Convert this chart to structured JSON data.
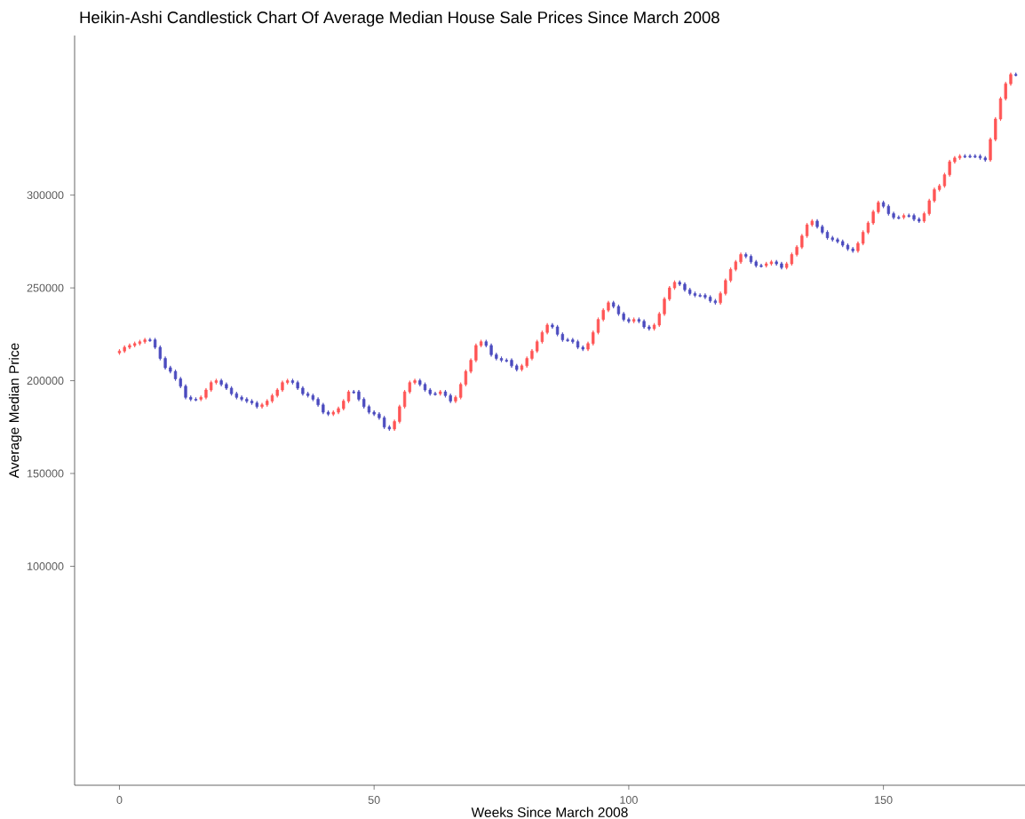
{
  "chart_data": {
    "type": "candlestick",
    "title": "Heikin-Ashi Candlestick Chart Of Average Median House Sale Prices Since March 2008",
    "xlabel": "Weeks Since March 2008",
    "ylabel": "Average Median Price",
    "xlim": [
      -8.8,
      177.8
    ],
    "xticks": [
      0,
      50,
      100,
      150
    ],
    "ylim": [
      -18000,
      386000
    ],
    "yticks": [
      100000,
      150000,
      200000,
      250000,
      300000
    ],
    "x": [
      0,
      1,
      2,
      3,
      4,
      5,
      6,
      7,
      8,
      9,
      10,
      11,
      12,
      13,
      14,
      15,
      16,
      17,
      18,
      19,
      20,
      21,
      22,
      23,
      24,
      25,
      26,
      27,
      28,
      29,
      30,
      31,
      32,
      33,
      34,
      35,
      36,
      37,
      38,
      39,
      40,
      41,
      42,
      43,
      44,
      45,
      46,
      47,
      48,
      49,
      50,
      51,
      52,
      53,
      54,
      55,
      56,
      57,
      58,
      59,
      60,
      61,
      62,
      63,
      64,
      65,
      66,
      67,
      68,
      69,
      70,
      71,
      72,
      73,
      74,
      75,
      76,
      77,
      78,
      79,
      80,
      81,
      82,
      83,
      84,
      85,
      86,
      87,
      88,
      89,
      90,
      91,
      92,
      93,
      94,
      95,
      96,
      97,
      98,
      99,
      100,
      101,
      102,
      103,
      104,
      105,
      106,
      107,
      108,
      109,
      110,
      111,
      112,
      113,
      114,
      115,
      116,
      117,
      118,
      119,
      120,
      121,
      122,
      123,
      124,
      125,
      126,
      127,
      128,
      129,
      130,
      131,
      132,
      133,
      134,
      135,
      136,
      137,
      138,
      139,
      140,
      141,
      142,
      143,
      144,
      145,
      146,
      147,
      148,
      149,
      150,
      151,
      152,
      153,
      154,
      155,
      156,
      157,
      158,
      159,
      160,
      161,
      162,
      163,
      164,
      165,
      166,
      167,
      168,
      169,
      170,
      171,
      172,
      173,
      174,
      175,
      176
    ],
    "ohlc": [
      [
        215000,
        217000,
        214000,
        216000
      ],
      [
        216000,
        219000,
        215000,
        218000
      ],
      [
        218000,
        220000,
        217000,
        219000
      ],
      [
        219000,
        221000,
        218000,
        220000
      ],
      [
        220000,
        222000,
        219000,
        221000
      ],
      [
        221000,
        223000,
        220000,
        222000
      ],
      [
        222000,
        223000,
        221000,
        221500
      ],
      [
        222000,
        223000,
        217000,
        218000
      ],
      [
        218000,
        219000,
        211000,
        212000
      ],
      [
        212000,
        213000,
        206000,
        207000
      ],
      [
        207000,
        208000,
        204000,
        205000
      ],
      [
        205000,
        206000,
        200000,
        201000
      ],
      [
        201000,
        202000,
        196000,
        197000
      ],
      [
        197000,
        198000,
        190000,
        191000
      ],
      [
        191000,
        192000,
        189000,
        190000
      ],
      [
        190000,
        191000,
        189000,
        189500
      ],
      [
        190000,
        192000,
        189000,
        191000
      ],
      [
        191000,
        196000,
        190000,
        195000
      ],
      [
        195000,
        200000,
        194000,
        199000
      ],
      [
        199000,
        201000,
        198000,
        200000
      ],
      [
        200000,
        201000,
        197000,
        198000
      ],
      [
        198000,
        199000,
        195000,
        196000
      ],
      [
        196000,
        197000,
        192000,
        193000
      ],
      [
        193000,
        194000,
        190000,
        191000
      ],
      [
        191000,
        192000,
        189000,
        190000
      ],
      [
        190000,
        191000,
        188000,
        189000
      ],
      [
        189000,
        190000,
        187000,
        188000
      ],
      [
        188000,
        189000,
        185000,
        186000
      ],
      [
        186000,
        188000,
        185000,
        187000
      ],
      [
        187000,
        190000,
        186000,
        189000
      ],
      [
        189000,
        193000,
        188000,
        192000
      ],
      [
        192000,
        196000,
        191000,
        195000
      ],
      [
        195000,
        200000,
        194000,
        199000
      ],
      [
        199000,
        201000,
        198000,
        200000
      ],
      [
        200000,
        201000,
        198000,
        199000
      ],
      [
        199000,
        200000,
        195000,
        196000
      ],
      [
        196000,
        197000,
        192000,
        193000
      ],
      [
        193000,
        194000,
        191000,
        192000
      ],
      [
        192000,
        193000,
        189000,
        190000
      ],
      [
        190000,
        191000,
        186000,
        187000
      ],
      [
        187000,
        188000,
        182000,
        183000
      ],
      [
        183000,
        184000,
        181000,
        182000
      ],
      [
        182000,
        184000,
        181000,
        183000
      ],
      [
        183000,
        186000,
        182000,
        185000
      ],
      [
        185000,
        190000,
        184000,
        189000
      ],
      [
        189000,
        195000,
        188000,
        194000
      ],
      [
        194000,
        195000,
        193000,
        193500
      ],
      [
        194000,
        195000,
        189000,
        190000
      ],
      [
        190000,
        191000,
        185000,
        186000
      ],
      [
        186000,
        187000,
        182000,
        183000
      ],
      [
        183000,
        184000,
        181000,
        182000
      ],
      [
        182000,
        183000,
        179000,
        180000
      ],
      [
        180000,
        181000,
        174000,
        175000
      ],
      [
        175000,
        176000,
        173000,
        174000
      ],
      [
        174000,
        179000,
        173000,
        178000
      ],
      [
        178000,
        187000,
        177000,
        186000
      ],
      [
        186000,
        195000,
        185000,
        194000
      ],
      [
        194000,
        200000,
        193000,
        199000
      ],
      [
        199000,
        201000,
        198000,
        200000
      ],
      [
        200000,
        201000,
        197000,
        198000
      ],
      [
        198000,
        199000,
        194000,
        195000
      ],
      [
        195000,
        196000,
        192000,
        193000
      ],
      [
        193000,
        194000,
        192000,
        192500
      ],
      [
        193000,
        195000,
        192000,
        194000
      ],
      [
        194000,
        195000,
        191000,
        192000
      ],
      [
        192000,
        193000,
        188000,
        189000
      ],
      [
        189000,
        192000,
        188000,
        191000
      ],
      [
        191000,
        199000,
        190000,
        198000
      ],
      [
        198000,
        206000,
        197000,
        205000
      ],
      [
        205000,
        212000,
        204000,
        211000
      ],
      [
        211000,
        220000,
        210000,
        219000
      ],
      [
        219000,
        222000,
        218000,
        221000
      ],
      [
        221000,
        222000,
        218000,
        219000
      ],
      [
        219000,
        220000,
        213000,
        214000
      ],
      [
        214000,
        215000,
        211000,
        212000
      ],
      [
        212000,
        213000,
        210000,
        211000
      ],
      [
        211000,
        212000,
        210000,
        210500
      ],
      [
        211000,
        212000,
        207000,
        208000
      ],
      [
        208000,
        209000,
        205000,
        206000
      ],
      [
        206000,
        209000,
        205000,
        208000
      ],
      [
        208000,
        213000,
        207000,
        212000
      ],
      [
        212000,
        217000,
        211000,
        216000
      ],
      [
        216000,
        222000,
        215000,
        221000
      ],
      [
        221000,
        227000,
        220000,
        226000
      ],
      [
        226000,
        231000,
        225000,
        230000
      ],
      [
        230000,
        231000,
        228000,
        229000
      ],
      [
        229000,
        230000,
        224000,
        225000
      ],
      [
        225000,
        226000,
        221000,
        222000
      ],
      [
        222000,
        223000,
        221000,
        221500
      ],
      [
        222000,
        223000,
        220000,
        221000
      ],
      [
        221000,
        222000,
        217000,
        218000
      ],
      [
        218000,
        219000,
        216000,
        217000
      ],
      [
        217000,
        221000,
        216000,
        220000
      ],
      [
        220000,
        227000,
        219000,
        226000
      ],
      [
        226000,
        234000,
        225000,
        233000
      ],
      [
        233000,
        239000,
        232000,
        238000
      ],
      [
        238000,
        243000,
        237000,
        242000
      ],
      [
        242000,
        243000,
        239000,
        240000
      ],
      [
        240000,
        241000,
        235000,
        236000
      ],
      [
        236000,
        237000,
        232000,
        233000
      ],
      [
        233000,
        234000,
        231000,
        232000
      ],
      [
        232000,
        234000,
        231000,
        233000
      ],
      [
        233000,
        234000,
        231000,
        232000
      ],
      [
        232000,
        233000,
        228000,
        229000
      ],
      [
        229000,
        230000,
        227000,
        228000
      ],
      [
        228000,
        231000,
        227000,
        230000
      ],
      [
        230000,
        237000,
        229000,
        236000
      ],
      [
        236000,
        245000,
        235000,
        244000
      ],
      [
        244000,
        251000,
        243000,
        250000
      ],
      [
        250000,
        254000,
        249000,
        253000
      ],
      [
        253000,
        254000,
        251000,
        252000
      ],
      [
        252000,
        253000,
        248000,
        249000
      ],
      [
        249000,
        250000,
        246000,
        247000
      ],
      [
        247000,
        248000,
        245000,
        246000
      ],
      [
        246000,
        247000,
        245000,
        245500
      ],
      [
        246000,
        247000,
        244000,
        245000
      ],
      [
        245000,
        246000,
        242000,
        243000
      ],
      [
        243000,
        244000,
        241000,
        242000
      ],
      [
        242000,
        248000,
        241000,
        247000
      ],
      [
        247000,
        255000,
        246000,
        254000
      ],
      [
        254000,
        261000,
        253000,
        260000
      ],
      [
        260000,
        265000,
        259000,
        264000
      ],
      [
        264000,
        269000,
        263000,
        268000
      ],
      [
        268000,
        269000,
        266000,
        267000
      ],
      [
        267000,
        268000,
        263000,
        264000
      ],
      [
        264000,
        265000,
        261000,
        262000
      ],
      [
        262000,
        263000,
        261000,
        261500
      ],
      [
        262000,
        264000,
        261000,
        263000
      ],
      [
        263000,
        265000,
        262000,
        264000
      ],
      [
        264000,
        265000,
        262000,
        263000
      ],
      [
        263000,
        264000,
        260000,
        261000
      ],
      [
        261000,
        264000,
        260000,
        263000
      ],
      [
        263000,
        269000,
        262000,
        268000
      ],
      [
        268000,
        273000,
        267000,
        272000
      ],
      [
        272000,
        279000,
        271000,
        278000
      ],
      [
        278000,
        285000,
        277000,
        284000
      ],
      [
        284000,
        287000,
        283000,
        286000
      ],
      [
        286000,
        287000,
        282000,
        283000
      ],
      [
        283000,
        284000,
        279000,
        280000
      ],
      [
        280000,
        281000,
        276000,
        277000
      ],
      [
        277000,
        278000,
        275000,
        276000
      ],
      [
        276000,
        277000,
        274000,
        275000
      ],
      [
        275000,
        276000,
        272000,
        273000
      ],
      [
        273000,
        274000,
        270000,
        271000
      ],
      [
        271000,
        272000,
        269000,
        270000
      ],
      [
        270000,
        275000,
        269000,
        274000
      ],
      [
        274000,
        281000,
        273000,
        280000
      ],
      [
        280000,
        286000,
        279000,
        285000
      ],
      [
        285000,
        292000,
        284000,
        291000
      ],
      [
        291000,
        297000,
        290000,
        296000
      ],
      [
        296000,
        297000,
        293000,
        294000
      ],
      [
        294000,
        295000,
        289000,
        290000
      ],
      [
        290000,
        291000,
        287000,
        288000
      ],
      [
        288000,
        289000,
        287000,
        287500
      ],
      [
        288000,
        290000,
        287000,
        289000
      ],
      [
        289000,
        290000,
        288000,
        288500
      ],
      [
        289000,
        290000,
        286000,
        287000
      ],
      [
        287000,
        288000,
        285000,
        286000
      ],
      [
        286000,
        291000,
        285000,
        290000
      ],
      [
        290000,
        298000,
        289000,
        297000
      ],
      [
        297000,
        304000,
        296000,
        303000
      ],
      [
        303000,
        306000,
        302000,
        305000
      ],
      [
        305000,
        312000,
        304000,
        311000
      ],
      [
        311000,
        319000,
        310000,
        318000
      ],
      [
        318000,
        321000,
        317000,
        320000
      ],
      [
        320000,
        322000,
        319000,
        321000
      ],
      [
        321000,
        322000,
        320000,
        320500
      ],
      [
        321000,
        322000,
        320000,
        320500
      ],
      [
        321000,
        322000,
        320000,
        320500
      ],
      [
        321000,
        322000,
        319000,
        320000
      ],
      [
        320000,
        321000,
        318000,
        319000
      ],
      [
        319000,
        331000,
        318000,
        330000
      ],
      [
        330000,
        342000,
        329000,
        341000
      ],
      [
        341000,
        353000,
        340000,
        352000
      ],
      [
        352000,
        361000,
        351000,
        360000
      ],
      [
        360000,
        366000,
        359000,
        365000
      ],
      [
        365000,
        366000,
        364000,
        364500
      ]
    ],
    "colors": [
      "#ff5555",
      "#ff5555",
      "#ff5555",
      "#ff5555",
      "#ff5555",
      "#ff5555",
      "#4b4bbf",
      "#4b4bbf",
      "#4b4bbf",
      "#4b4bbf",
      "#4b4bbf",
      "#4b4bbf",
      "#4b4bbf",
      "#4b4bbf",
      "#4b4bbf",
      "#4b4bbf",
      "#ff5555",
      "#ff5555",
      "#ff5555",
      "#ff5555",
      "#4b4bbf",
      "#4b4bbf",
      "#4b4bbf",
      "#4b4bbf",
      "#4b4bbf",
      "#4b4bbf",
      "#4b4bbf",
      "#4b4bbf",
      "#ff5555",
      "#ff5555",
      "#ff5555",
      "#ff5555",
      "#ff5555",
      "#ff5555",
      "#4b4bbf",
      "#4b4bbf",
      "#4b4bbf",
      "#4b4bbf",
      "#4b4bbf",
      "#4b4bbf",
      "#4b4bbf",
      "#4b4bbf",
      "#ff5555",
      "#ff5555",
      "#ff5555",
      "#ff5555",
      "#4b4bbf",
      "#4b4bbf",
      "#4b4bbf",
      "#4b4bbf",
      "#4b4bbf",
      "#4b4bbf",
      "#4b4bbf",
      "#4b4bbf",
      "#ff5555",
      "#ff5555",
      "#ff5555",
      "#ff5555",
      "#ff5555",
      "#4b4bbf",
      "#4b4bbf",
      "#4b4bbf",
      "#4b4bbf",
      "#ff5555",
      "#4b4bbf",
      "#4b4bbf",
      "#ff5555",
      "#ff5555",
      "#ff5555",
      "#ff5555",
      "#ff5555",
      "#ff5555",
      "#4b4bbf",
      "#4b4bbf",
      "#4b4bbf",
      "#4b4bbf",
      "#4b4bbf",
      "#4b4bbf",
      "#4b4bbf",
      "#ff5555",
      "#ff5555",
      "#ff5555",
      "#ff5555",
      "#ff5555",
      "#ff5555",
      "#4b4bbf",
      "#4b4bbf",
      "#4b4bbf",
      "#4b4bbf",
      "#4b4bbf",
      "#4b4bbf",
      "#4b4bbf",
      "#ff5555",
      "#ff5555",
      "#ff5555",
      "#ff5555",
      "#ff5555",
      "#4b4bbf",
      "#4b4bbf",
      "#4b4bbf",
      "#4b4bbf",
      "#ff5555",
      "#4b4bbf",
      "#4b4bbf",
      "#4b4bbf",
      "#ff5555",
      "#ff5555",
      "#ff5555",
      "#ff5555",
      "#ff5555",
      "#4b4bbf",
      "#4b4bbf",
      "#4b4bbf",
      "#4b4bbf",
      "#4b4bbf",
      "#4b4bbf",
      "#4b4bbf",
      "#4b4bbf",
      "#ff5555",
      "#ff5555",
      "#ff5555",
      "#ff5555",
      "#ff5555",
      "#4b4bbf",
      "#4b4bbf",
      "#4b4bbf",
      "#4b4bbf",
      "#ff5555",
      "#ff5555",
      "#4b4bbf",
      "#4b4bbf",
      "#ff5555",
      "#ff5555",
      "#ff5555",
      "#ff5555",
      "#ff5555",
      "#ff5555",
      "#4b4bbf",
      "#4b4bbf",
      "#4b4bbf",
      "#4b4bbf",
      "#4b4bbf",
      "#4b4bbf",
      "#4b4bbf",
      "#4b4bbf",
      "#ff5555",
      "#ff5555",
      "#ff5555",
      "#ff5555",
      "#ff5555",
      "#4b4bbf",
      "#4b4bbf",
      "#4b4bbf",
      "#4b4bbf",
      "#ff5555",
      "#4b4bbf",
      "#4b4bbf",
      "#4b4bbf",
      "#ff5555",
      "#ff5555",
      "#ff5555",
      "#ff5555",
      "#ff5555",
      "#ff5555",
      "#ff5555",
      "#ff5555",
      "#4b4bbf",
      "#4b4bbf",
      "#4b4bbf",
      "#4b4bbf",
      "#4b4bbf",
      "#ff5555",
      "#ff5555",
      "#ff5555",
      "#ff5555",
      "#ff5555",
      "#4b4bbf"
    ]
  }
}
